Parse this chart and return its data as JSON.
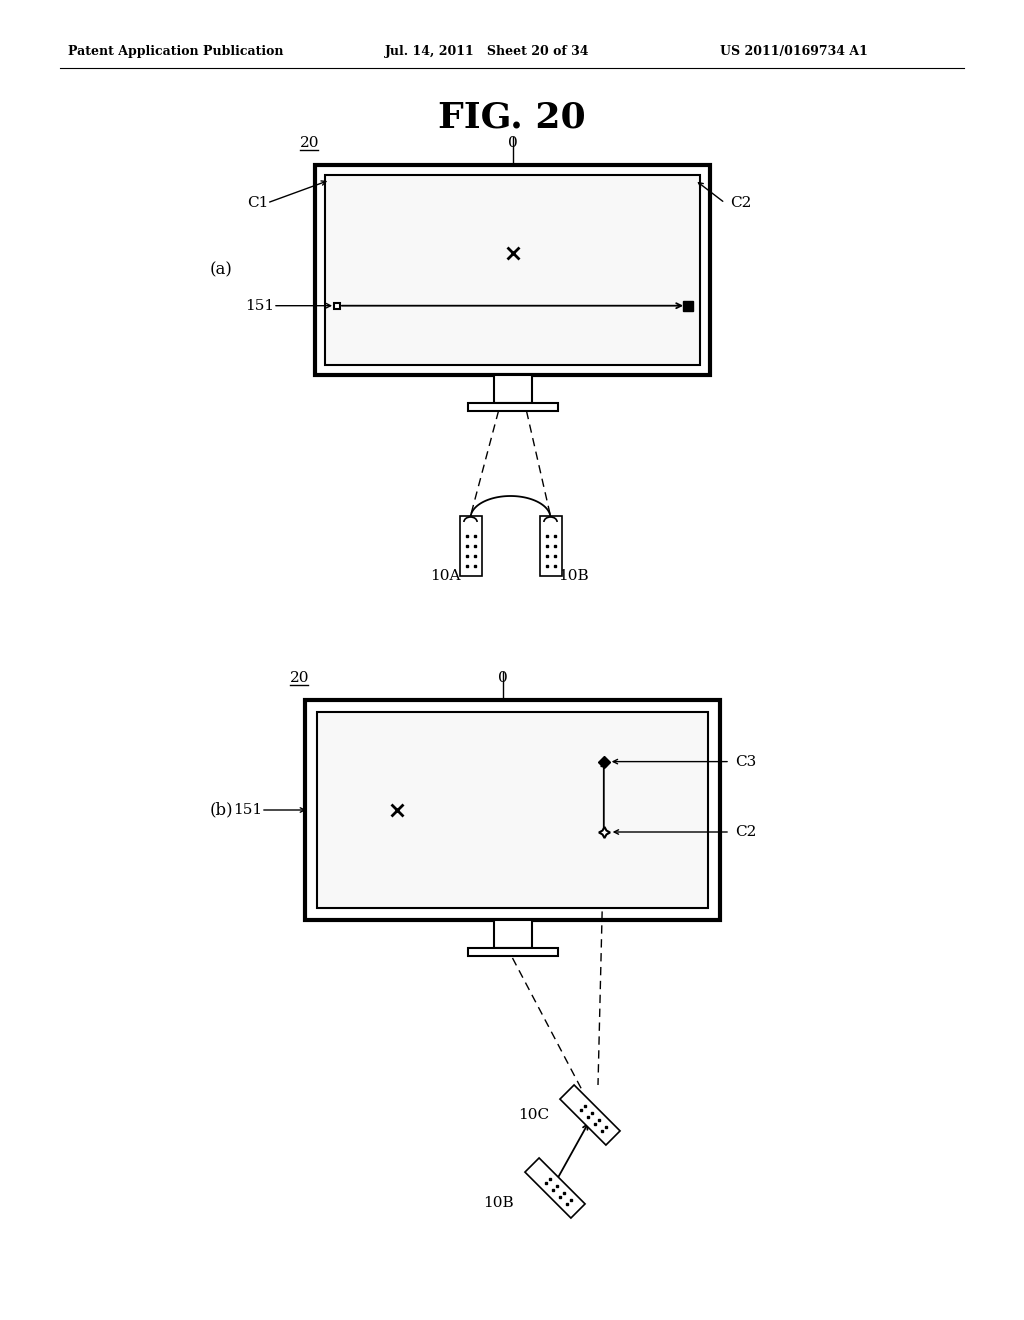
{
  "bg_color": "#ffffff",
  "header_left": "Patent Application Publication",
  "header_mid": "Jul. 14, 2011   Sheet 20 of 34",
  "header_right": "US 2011/0169734 A1",
  "title": "FIG. 20",
  "fig_a_label": "(a)",
  "fig_b_label": "(b)",
  "label_20a": "20",
  "label_0a": "0",
  "label_C1": "C1",
  "label_C2a": "C2",
  "label_151a": "151",
  "label_10A": "10A",
  "label_10B_a": "10B",
  "label_20b": "20",
  "label_0b": "0",
  "label_C2b": "C2",
  "label_C3": "C3",
  "label_151b": "151",
  "label_10B_b": "10B",
  "label_10C": "10C",
  "line_color": "#000000",
  "screen_color": "#f8f8f8"
}
